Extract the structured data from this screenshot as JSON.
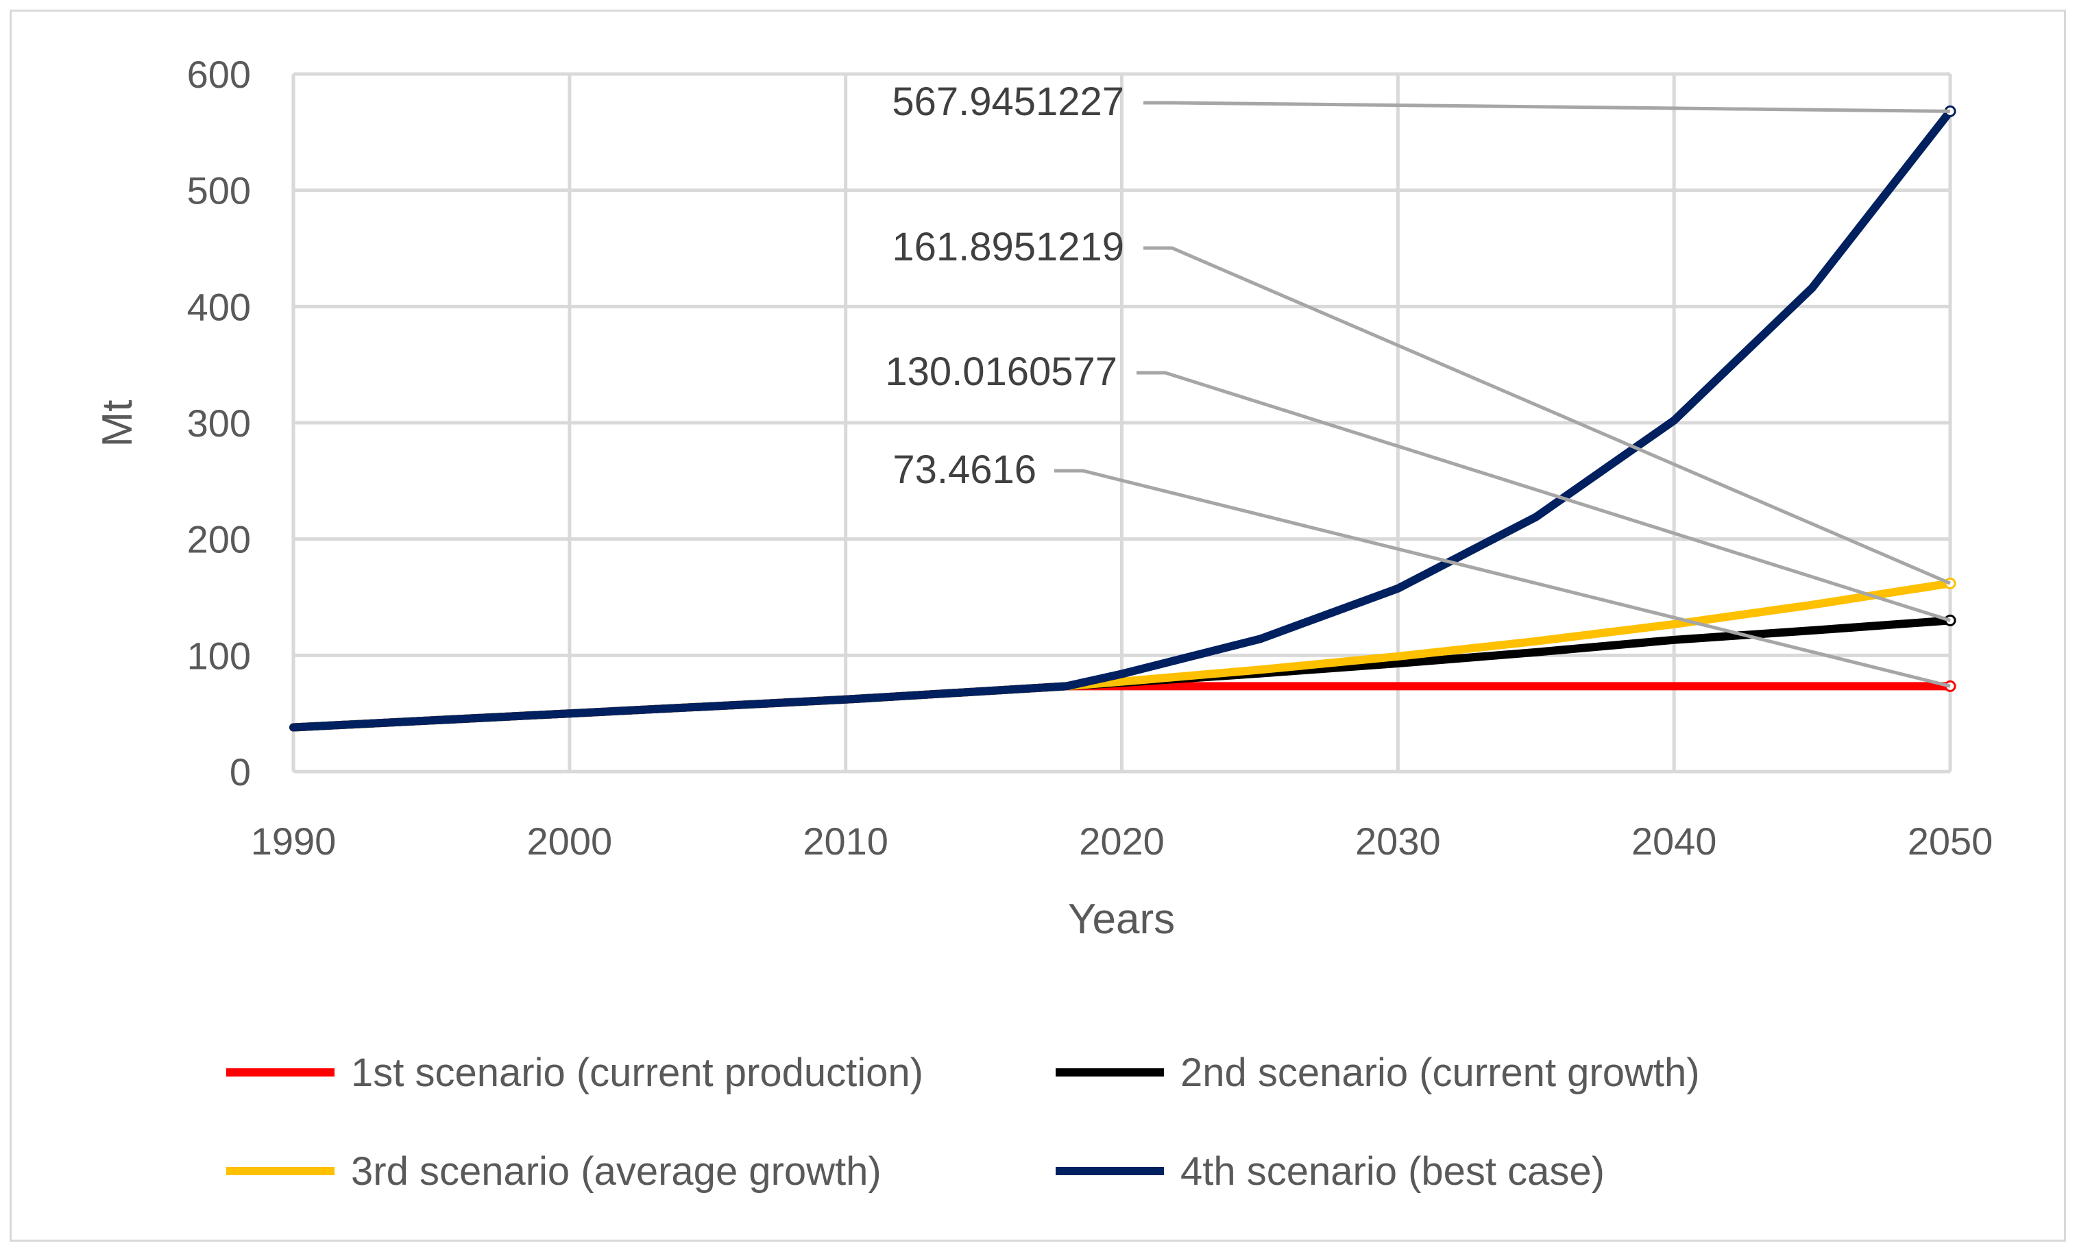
{
  "chart_data": {
    "type": "line",
    "title": "",
    "xlabel": "Years",
    "ylabel": "Mt",
    "xlim": [
      1990,
      2050
    ],
    "ylim": [
      0,
      600
    ],
    "x_ticks": [
      1990,
      2000,
      2010,
      2020,
      2030,
      2040,
      2050
    ],
    "y_ticks": [
      0,
      100,
      200,
      300,
      400,
      500,
      600
    ],
    "grid": true,
    "legend_position": "bottom",
    "series": [
      {
        "name": "1st scenario (current production)",
        "color": "#ff0000",
        "points": [
          [
            1990,
            38.0
          ],
          [
            2000,
            50.0
          ],
          [
            2010,
            62.0
          ],
          [
            2018,
            73.4616
          ],
          [
            2020,
            73.4616
          ],
          [
            2030,
            73.4616
          ],
          [
            2040,
            73.4616
          ],
          [
            2050,
            73.4616
          ]
        ]
      },
      {
        "name": "2nd scenario (current growth)",
        "color": "#000000",
        "points": [
          [
            1990,
            38.0
          ],
          [
            2000,
            50.0
          ],
          [
            2010,
            62.0
          ],
          [
            2018,
            73.4616
          ],
          [
            2020,
            76.4
          ],
          [
            2025,
            84.4
          ],
          [
            2030,
            93.1
          ],
          [
            2035,
            102.7
          ],
          [
            2040,
            113.3
          ],
          [
            2045,
            121.4
          ],
          [
            2050,
            130.0160577
          ]
        ]
      },
      {
        "name": "3rd scenario (average growth)",
        "color": "#ffc000",
        "points": [
          [
            1990,
            38.0
          ],
          [
            2000,
            50.0
          ],
          [
            2010,
            62.0
          ],
          [
            2018,
            73.4616
          ],
          [
            2020,
            77.4
          ],
          [
            2025,
            87.6
          ],
          [
            2030,
            99.1
          ],
          [
            2035,
            112.1
          ],
          [
            2040,
            126.8
          ],
          [
            2045,
            143.4
          ],
          [
            2050,
            161.8951219
          ]
        ]
      },
      {
        "name": "4th scenario (best case)",
        "color": "#002060",
        "points": [
          [
            1990,
            38.0
          ],
          [
            2000,
            50.0
          ],
          [
            2010,
            62.0
          ],
          [
            2018,
            73.4616
          ],
          [
            2020,
            84.0
          ],
          [
            2025,
            114.0
          ],
          [
            2030,
            157.5
          ],
          [
            2035,
            219.0
          ],
          [
            2040,
            302.0
          ],
          [
            2045,
            416.0
          ],
          [
            2050,
            567.9451227
          ]
        ]
      }
    ],
    "annotations": [
      {
        "text": "567.9451227",
        "series": "4th scenario (best case)",
        "x": 2050,
        "y": 567.9451227
      },
      {
        "text": "161.8951219",
        "series": "3rd scenario (average growth)",
        "x": 2050,
        "y": 161.8951219
      },
      {
        "text": "130.0160577",
        "series": "2nd scenario (current growth)",
        "x": 2050,
        "y": 130.0160577
      },
      {
        "text": "73.4616",
        "series": "1st scenario (current production)",
        "x": 2050,
        "y": 73.4616
      }
    ]
  }
}
